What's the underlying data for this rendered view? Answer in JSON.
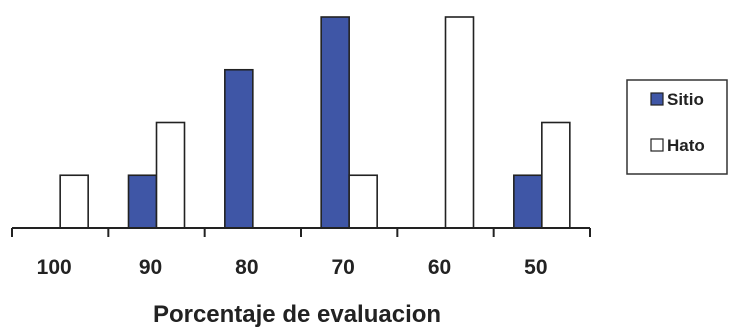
{
  "chart_data": {
    "type": "bar",
    "categories": [
      "100",
      "90",
      "80",
      "70",
      "60",
      "50"
    ],
    "series": [
      {
        "name": "Sitio",
        "values": [
          0,
          1,
          3,
          4,
          0,
          1
        ],
        "color": "#3f56a6"
      },
      {
        "name": "Hato",
        "values": [
          1,
          2,
          0,
          1,
          4,
          2
        ],
        "color": "#ffffff"
      }
    ],
    "title": "",
    "xlabel": "Porcentaje de evaluacion",
    "ylabel": "",
    "ylim": [
      0,
      4
    ],
    "grid": false,
    "legend_position": "right"
  }
}
